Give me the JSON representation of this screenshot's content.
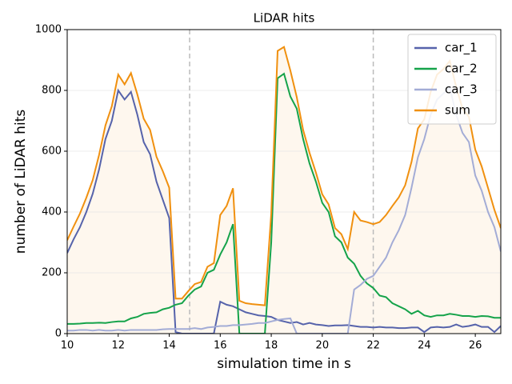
{
  "chart_data": {
    "type": "line",
    "title": "LiDAR hits",
    "xlabel": "simulation time in s",
    "ylabel": "number of LiDAR hits",
    "x": [
      10,
      10.25,
      10.5,
      10.75,
      11,
      11.25,
      11.5,
      11.75,
      12,
      12.25,
      12.5,
      12.75,
      13,
      13.25,
      13.5,
      13.75,
      14,
      14.25,
      14.5,
      14.75,
      15,
      15.25,
      15.5,
      15.75,
      16,
      16.25,
      16.5,
      16.75,
      17,
      17.25,
      17.5,
      17.75,
      18,
      18.25,
      18.5,
      18.75,
      19,
      19.25,
      19.5,
      19.75,
      20,
      20.25,
      20.5,
      20.75,
      21,
      21.25,
      21.5,
      21.75,
      22,
      22.25,
      22.5,
      22.75,
      23,
      23.25,
      23.5,
      23.75,
      24,
      24.25,
      24.5,
      24.75,
      25,
      25.25,
      25.5,
      25.75,
      26,
      26.25,
      26.5,
      26.75,
      27
    ],
    "series": [
      {
        "name": "car_1",
        "color": "#5663ab",
        "values": [
          265,
          310,
          350,
          400,
          460,
          540,
          640,
          700,
          800,
          770,
          795,
          720,
          630,
          590,
          500,
          440,
          380,
          5,
          0,
          0,
          0,
          0,
          0,
          0,
          105,
          95,
          90,
          80,
          70,
          65,
          60,
          58,
          55,
          45,
          40,
          35,
          38,
          30,
          35,
          30,
          28,
          25,
          27,
          27,
          28,
          25,
          22,
          22,
          20,
          22,
          20,
          20,
          18,
          18,
          20,
          20,
          5,
          20,
          22,
          20,
          22,
          30,
          22,
          25,
          30,
          22,
          22,
          5,
          25
        ]
      },
      {
        "name": "car_2",
        "color": "#15a34a",
        "values": [
          32,
          32,
          33,
          35,
          35,
          36,
          35,
          38,
          40,
          40,
          50,
          55,
          65,
          68,
          70,
          80,
          85,
          95,
          100,
          125,
          145,
          155,
          200,
          210,
          260,
          300,
          360,
          0,
          0,
          0,
          0,
          0,
          300,
          840,
          855,
          780,
          740,
          640,
          560,
          500,
          430,
          400,
          320,
          300,
          250,
          230,
          190,
          165,
          150,
          125,
          120,
          100,
          90,
          80,
          65,
          75,
          60,
          55,
          60,
          60,
          65,
          62,
          58,
          58,
          55,
          58,
          57,
          52,
          52
        ]
      },
      {
        "name": "car_3",
        "color": "#a3acd6",
        "values": [
          10,
          10,
          12,
          12,
          10,
          12,
          10,
          10,
          12,
          10,
          12,
          12,
          12,
          12,
          12,
          14,
          15,
          15,
          15,
          15,
          18,
          15,
          20,
          22,
          25,
          25,
          28,
          28,
          30,
          32,
          35,
          35,
          40,
          45,
          48,
          50,
          0,
          0,
          0,
          0,
          0,
          0,
          0,
          0,
          0,
          145,
          160,
          180,
          190,
          220,
          250,
          300,
          340,
          390,
          480,
          580,
          640,
          720,
          770,
          790,
          810,
          720,
          660,
          630,
          520,
          470,
          400,
          350,
          270
        ]
      },
      {
        "name": "sum",
        "color": "#f0900f",
        "fill": "#fef7ee",
        "values": [
          307,
          352,
          395,
          447,
          505,
          588,
          685,
          748,
          852,
          820,
          857,
          787,
          707,
          670,
          582,
          534,
          480,
          115,
          115,
          140,
          163,
          170,
          220,
          232,
          390,
          420,
          478,
          108,
          100,
          97,
          95,
          93,
          395,
          930,
          943,
          865,
          778,
          670,
          595,
          530,
          458,
          425,
          347,
          327,
          278,
          400,
          372,
          367,
          360,
          367,
          390,
          420,
          448,
          488,
          565,
          675,
          705,
          795,
          852,
          870,
          897,
          812,
          740,
          713,
          605,
          550,
          479,
          407,
          347
        ]
      }
    ],
    "xlim": [
      10,
      27
    ],
    "xticks": [
      10,
      12,
      14,
      16,
      18,
      20,
      22,
      24,
      26
    ],
    "ylim": [
      0,
      1000
    ],
    "yticks": [
      0,
      200,
      400,
      600,
      800,
      1000
    ],
    "grid": true,
    "vlines": [
      14.8,
      22
    ],
    "legend": "upper right"
  }
}
